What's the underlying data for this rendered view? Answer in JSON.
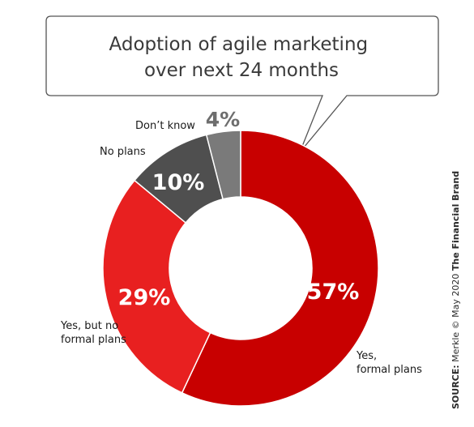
{
  "chart_data": {
    "type": "pie",
    "title_lines": [
      "Adoption of agile marketing",
      "over next 24 months"
    ],
    "categories": [
      "Yes, formal plans",
      "Yes, but no formal plans",
      "No plans",
      "Don't know"
    ],
    "values": [
      57,
      29,
      10,
      4
    ],
    "value_labels": [
      "57%",
      "29%",
      "10%",
      "4%"
    ],
    "category_label_lines": [
      [
        "Yes,",
        "formal plans"
      ],
      [
        "Yes, but no",
        "formal plans"
      ],
      [
        "No plans"
      ],
      [
        "Don’t know"
      ]
    ],
    "colors": [
      "#c80000",
      "#e82020",
      "#4f4f4f",
      "#7a7a7a"
    ],
    "hole": "donut"
  },
  "source": {
    "prefix": "SOURCE:",
    "text": " Merkle © May 2020 ",
    "brand": "The Financial Brand"
  }
}
